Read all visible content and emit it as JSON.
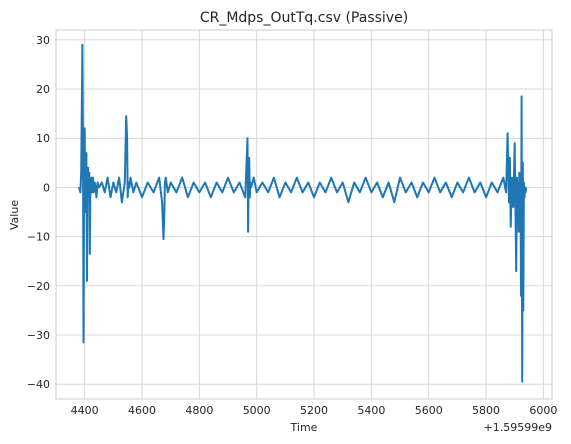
{
  "chart_data": {
    "type": "line",
    "title": "CR_Mdps_OutTq.csv (Passive)",
    "xlabel": "Time",
    "ylabel": "Value",
    "x_offset_label": "+1.59599e9",
    "xlim": [
      4300,
      6030
    ],
    "ylim": [
      -43,
      32
    ],
    "xticks": [
      4400,
      4600,
      4800,
      5000,
      5200,
      5400,
      5600,
      5800,
      6000
    ],
    "yticks": [
      -40,
      -30,
      -20,
      -10,
      0,
      10,
      20,
      30
    ],
    "grid": true,
    "series_color": "#1f77b4",
    "series": [
      {
        "x": [
          4380,
          4385,
          4388,
          4390,
          4392,
          4394,
          4396,
          4398,
          4400,
          4402,
          4404,
          4406,
          4408,
          4410,
          4412,
          4414,
          4416,
          4418,
          4420,
          4423,
          4426,
          4429,
          4432,
          4435,
          4438,
          4441,
          4445,
          4450,
          4460,
          4470,
          4480,
          4490,
          4500,
          4510,
          4520,
          4530,
          4540,
          4545,
          4548,
          4550,
          4553,
          4556,
          4560,
          4570,
          4580,
          4600,
          4620,
          4640,
          4660,
          4670,
          4675,
          4678,
          4680,
          4683,
          4690,
          4700,
          4720,
          4740,
          4760,
          4780,
          4800,
          4820,
          4840,
          4860,
          4880,
          4900,
          4920,
          4940,
          4960,
          4968,
          4970,
          4972,
          4974,
          4976,
          4978,
          4980,
          4990,
          5000,
          5020,
          5040,
          5060,
          5080,
          5100,
          5120,
          5140,
          5160,
          5180,
          5200,
          5220,
          5240,
          5260,
          5280,
          5300,
          5320,
          5340,
          5360,
          5380,
          5400,
          5420,
          5440,
          5460,
          5480,
          5500,
          5520,
          5540,
          5560,
          5580,
          5600,
          5620,
          5640,
          5660,
          5680,
          5700,
          5720,
          5740,
          5760,
          5780,
          5800,
          5820,
          5840,
          5860,
          5870,
          5875,
          5880,
          5883,
          5886,
          5890,
          5895,
          5900,
          5905,
          5908,
          5910,
          5912,
          5914,
          5916,
          5918,
          5920,
          5922,
          5924,
          5926,
          5928,
          5930,
          5932,
          5934,
          5936,
          5938,
          5940
        ],
        "y": [
          0,
          -1,
          3,
          16,
          29,
          8,
          -31.5,
          2,
          12,
          -5,
          1,
          7,
          -19,
          2,
          4,
          -2,
          3,
          -13.5,
          1,
          2,
          -1,
          2,
          -1,
          1,
          0,
          -2,
          1,
          0,
          1,
          -1,
          2,
          -2,
          1,
          -1,
          2,
          -3,
          1,
          14.5,
          10,
          -2,
          1,
          0,
          2,
          -1,
          1,
          -2,
          1,
          -1,
          2,
          -3,
          -10.5,
          -5,
          1,
          2,
          -1,
          1,
          -1,
          2,
          -2,
          1,
          -1,
          1,
          -2,
          1,
          -1,
          2,
          -1,
          1,
          -2,
          10,
          -9,
          3,
          6,
          -2,
          1,
          0,
          2,
          -1,
          1,
          -1,
          2,
          -2,
          1,
          -1,
          2,
          -1,
          1,
          -2,
          1,
          -1,
          2,
          -1,
          1,
          -3,
          1,
          -1,
          2,
          -1,
          1,
          -2,
          1,
          -3,
          2,
          -1,
          1,
          -2,
          1,
          -1,
          2,
          -1,
          1,
          -2,
          1,
          -1,
          2,
          -1,
          1,
          -2,
          1,
          -1,
          2,
          -1,
          11,
          -3,
          6,
          -8,
          2,
          -4,
          9,
          -17,
          2,
          -6,
          1,
          -9,
          3,
          -2,
          1,
          -22,
          18.5,
          -39.5,
          5,
          -25,
          1,
          -2,
          0,
          -1,
          0
        ]
      }
    ]
  }
}
